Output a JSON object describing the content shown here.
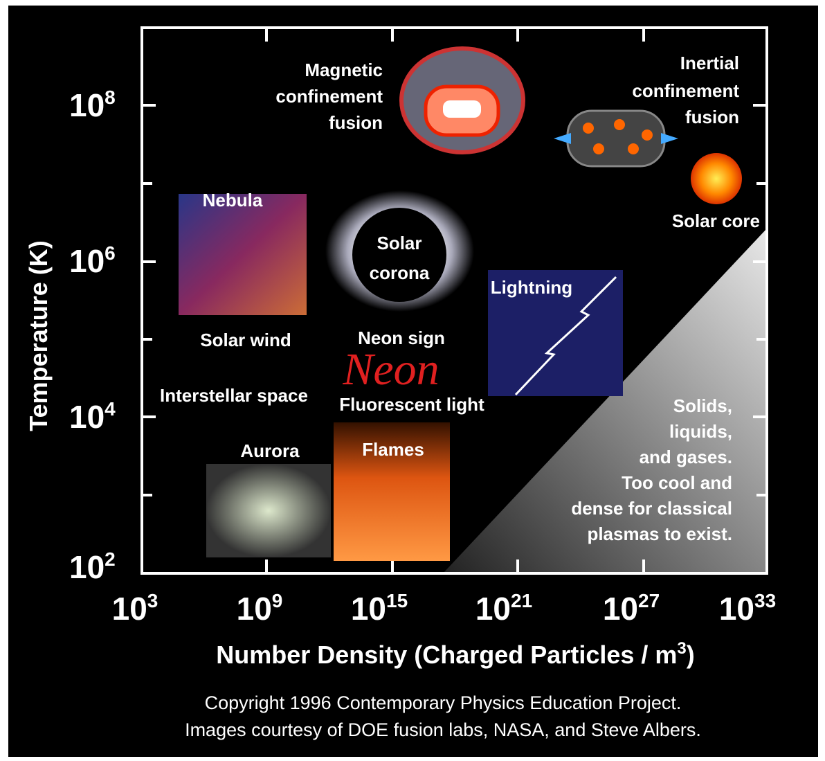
{
  "y_axis": {
    "title": "Temperature (K)",
    "ticks": [
      {
        "base": "10",
        "exp": "8"
      },
      {
        "base": "10",
        "exp": "6"
      },
      {
        "base": "10",
        "exp": "4"
      },
      {
        "base": "10",
        "exp": "2"
      }
    ]
  },
  "x_axis": {
    "title": "Number Density (Charged Particles / m",
    "title_sup": "3",
    "title_end": ")",
    "ticks": [
      {
        "base": "10",
        "exp": "3"
      },
      {
        "base": "10",
        "exp": "9"
      },
      {
        "base": "10",
        "exp": "15"
      },
      {
        "base": "10",
        "exp": "21"
      },
      {
        "base": "10",
        "exp": "27"
      },
      {
        "base": "10",
        "exp": "33"
      }
    ]
  },
  "labels": {
    "magnetic": [
      "Magnetic",
      "confinement",
      "fusion"
    ],
    "inertial": [
      "Inertial",
      "confinement",
      "fusion"
    ],
    "solar_core": "Solar core",
    "nebula": "Nebula",
    "solar_corona": [
      "Solar",
      "corona"
    ],
    "lightning": "Lightning",
    "solar_wind": "Solar wind",
    "neon_sign": "Neon sign",
    "neon_script": "Neon",
    "interstellar": "Interstellar space",
    "fluorescent": "Fluorescent light",
    "aurora": "Aurora",
    "flames": "Flames",
    "solids": [
      "Solids,",
      "liquids,",
      "and gases.",
      "Too cool and",
      "dense for classical",
      "plasmas to exist."
    ]
  },
  "footer": [
    "Copyright 1996 Contemporary Physics Education Project.",
    "Images courtesy of DOE fusion labs, NASA, and Steve Albers."
  ]
}
